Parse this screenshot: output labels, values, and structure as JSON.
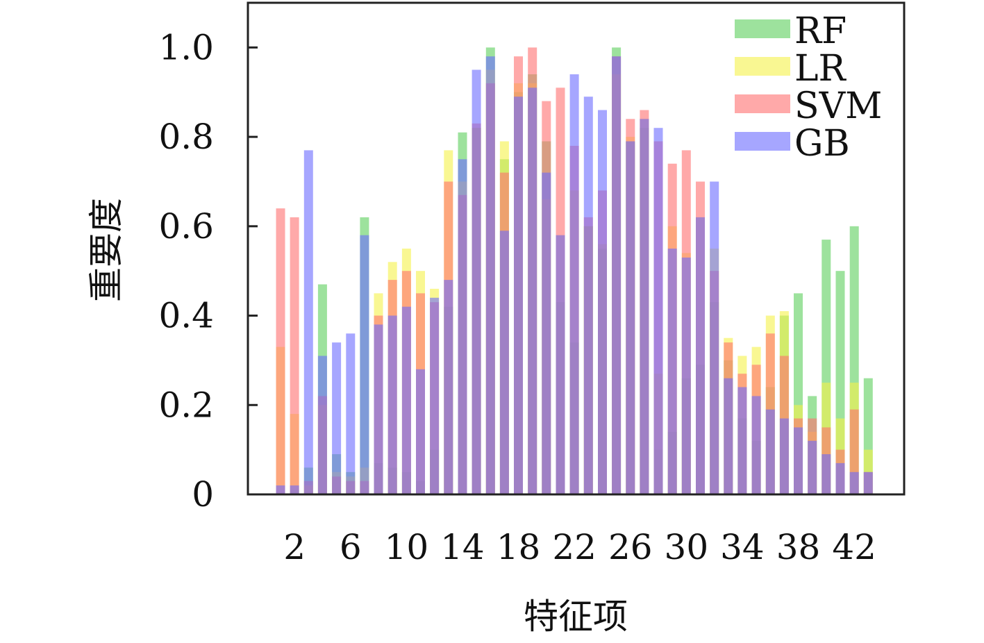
{
  "chart_data": {
    "type": "bar",
    "xlabel": "特征项",
    "ylabel": "重要度",
    "ylim": [
      0,
      1.1
    ],
    "yticks": [
      0,
      0.2,
      0.4,
      0.6,
      0.8,
      1.0
    ],
    "ytick_labels": [
      "0",
      "0.2",
      "0.4",
      "0.6",
      "0.8",
      "1.0"
    ],
    "xtick_labels": [
      "2",
      "6",
      "10",
      "14",
      "18",
      "22",
      "26",
      "30",
      "34",
      "38",
      "42"
    ],
    "xtick_positions": [
      2,
      6,
      10,
      14,
      18,
      22,
      26,
      30,
      34,
      38,
      42
    ],
    "grid": false,
    "legend_position": "top-right",
    "categories": [
      1,
      2,
      3,
      4,
      5,
      6,
      7,
      8,
      9,
      10,
      11,
      12,
      13,
      14,
      15,
      16,
      17,
      18,
      19,
      20,
      21,
      22,
      23,
      24,
      25,
      26,
      27,
      28,
      29,
      30,
      31,
      32,
      33,
      34,
      35,
      36,
      37,
      38,
      39,
      40,
      41,
      42,
      43
    ],
    "series": [
      {
        "name": "RF",
        "color": "#5ccf5c",
        "values": [
          0.0,
          0.01,
          0.06,
          0.47,
          0.09,
          0.05,
          0.62,
          0.07,
          0.06,
          0.05,
          0.03,
          0.1,
          0.42,
          0.81,
          0.82,
          1.0,
          0.75,
          0.9,
          0.94,
          0.79,
          0.43,
          0.34,
          0.6,
          0.55,
          1.0,
          0.79,
          0.82,
          0.1,
          0.14,
          0.26,
          0.29,
          0.43,
          0.3,
          0.17,
          0.12,
          0.24,
          0.4,
          0.45,
          0.22,
          0.57,
          0.5,
          0.6,
          0.26
        ]
      },
      {
        "name": "LR",
        "color": "#f5f24a",
        "values": [
          0.33,
          0.18,
          0.02,
          0.2,
          0.05,
          0.04,
          0.06,
          0.45,
          0.52,
          0.55,
          0.5,
          0.46,
          0.77,
          0.7,
          0.82,
          0.95,
          0.79,
          0.92,
          0.92,
          0.66,
          0.58,
          0.68,
          0.6,
          0.56,
          0.94,
          0.8,
          0.84,
          0.27,
          0.6,
          0.54,
          0.62,
          0.55,
          0.35,
          0.31,
          0.33,
          0.4,
          0.41,
          0.2,
          0.14,
          0.25,
          0.17,
          0.25,
          0.1
        ]
      },
      {
        "name": "SVM",
        "color": "#ff6f6f",
        "values": [
          0.64,
          0.62,
          0.03,
          0.22,
          0.04,
          0.03,
          0.03,
          0.4,
          0.48,
          0.5,
          0.45,
          0.43,
          0.7,
          0.67,
          0.83,
          0.92,
          0.72,
          0.98,
          1.0,
          0.88,
          0.91,
          0.78,
          0.62,
          0.68,
          0.98,
          0.84,
          0.86,
          0.79,
          0.74,
          0.77,
          0.7,
          0.5,
          0.34,
          0.27,
          0.29,
          0.36,
          0.31,
          0.17,
          0.17,
          0.15,
          0.1,
          0.19,
          0.05
        ]
      },
      {
        "name": "GB",
        "color": "#6b6bff",
        "values": [
          0.02,
          0.02,
          0.77,
          0.31,
          0.34,
          0.36,
          0.58,
          0.38,
          0.4,
          0.42,
          0.28,
          0.44,
          0.48,
          0.75,
          0.95,
          0.98,
          0.59,
          0.89,
          0.91,
          0.72,
          0.58,
          0.94,
          0.89,
          0.86,
          0.98,
          0.79,
          0.84,
          0.82,
          0.55,
          0.53,
          0.62,
          0.7,
          0.26,
          0.24,
          0.22,
          0.19,
          0.17,
          0.15,
          0.12,
          0.09,
          0.07,
          0.05,
          0.05
        ]
      }
    ]
  }
}
